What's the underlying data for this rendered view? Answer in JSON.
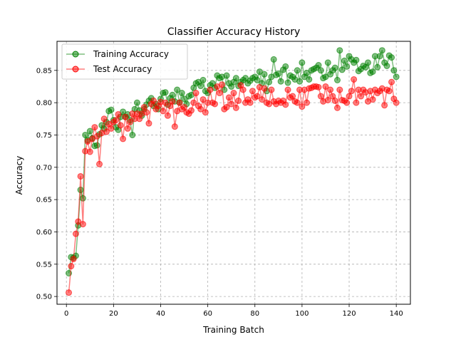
{
  "chart_data": {
    "type": "line",
    "title": "Classifier Accuracy History",
    "xlabel": "Training Batch",
    "ylabel": "Accuracy",
    "xlim": [
      -4,
      146
    ],
    "ylim": [
      0.488,
      0.895
    ],
    "xticks": [
      0,
      20,
      40,
      60,
      80,
      100,
      120,
      140
    ],
    "xtick_labels": [
      "0",
      "20",
      "40",
      "60",
      "80",
      "100",
      "120",
      "140"
    ],
    "yticks": [
      0.5,
      0.55,
      0.6,
      0.65,
      0.7,
      0.75,
      0.8,
      0.85
    ],
    "ytick_labels": [
      "0.50",
      "0.55",
      "0.60",
      "0.65",
      "0.70",
      "0.75",
      "0.80",
      "0.85"
    ],
    "grid": true,
    "legend_position": "top-left",
    "series": [
      {
        "name": "Training Accuracy",
        "color": "#008000",
        "x": [
          1,
          2,
          3,
          4,
          5,
          6,
          7,
          8,
          9,
          10,
          11,
          12,
          13,
          14,
          15,
          16,
          17,
          18,
          19,
          20,
          21,
          22,
          23,
          24,
          25,
          26,
          27,
          28,
          29,
          30,
          31,
          32,
          33,
          34,
          35,
          36,
          37,
          38,
          39,
          40,
          41,
          42,
          43,
          44,
          45,
          46,
          47,
          48,
          49,
          50,
          51,
          52,
          53,
          54,
          55,
          56,
          57,
          58,
          59,
          60,
          61,
          62,
          63,
          64,
          65,
          66,
          67,
          68,
          69,
          70,
          71,
          72,
          73,
          74,
          75,
          76,
          77,
          78,
          79,
          80,
          81,
          82,
          83,
          84,
          85,
          86,
          87,
          88,
          89,
          90,
          91,
          92,
          93,
          94,
          95,
          96,
          97,
          98,
          99,
          100,
          101,
          102,
          103,
          104,
          105,
          106,
          107,
          108,
          109,
          110,
          111,
          112,
          113,
          114,
          115,
          116,
          117,
          118,
          119,
          120,
          121,
          122,
          123,
          124,
          125,
          126,
          127,
          128,
          129,
          130,
          131,
          132,
          133,
          134,
          135,
          136,
          137,
          138,
          139,
          140
        ],
        "values": [
          0.536,
          0.561,
          0.56,
          0.563,
          0.61,
          0.665,
          0.652,
          0.75,
          0.742,
          0.756,
          0.745,
          0.733,
          0.734,
          0.751,
          0.765,
          0.76,
          0.77,
          0.787,
          0.789,
          0.773,
          0.762,
          0.758,
          0.778,
          0.786,
          0.778,
          0.782,
          0.773,
          0.75,
          0.79,
          0.8,
          0.788,
          0.78,
          0.79,
          0.797,
          0.803,
          0.807,
          0.795,
          0.798,
          0.79,
          0.806,
          0.815,
          0.816,
          0.797,
          0.807,
          0.812,
          0.802,
          0.82,
          0.8,
          0.815,
          0.806,
          0.798,
          0.81,
          0.812,
          0.823,
          0.83,
          0.832,
          0.826,
          0.835,
          0.818,
          0.815,
          0.827,
          0.83,
          0.823,
          0.842,
          0.838,
          0.84,
          0.82,
          0.842,
          0.83,
          0.825,
          0.832,
          0.838,
          0.826,
          0.832,
          0.835,
          0.838,
          0.83,
          0.834,
          0.838,
          0.84,
          0.835,
          0.848,
          0.83,
          0.844,
          0.818,
          0.832,
          0.84,
          0.867,
          0.843,
          0.845,
          0.833,
          0.851,
          0.856,
          0.831,
          0.842,
          0.84,
          0.836,
          0.85,
          0.833,
          0.862,
          0.84,
          0.846,
          0.836,
          0.85,
          0.852,
          0.854,
          0.858,
          0.85,
          0.838,
          0.84,
          0.862,
          0.844,
          0.85,
          0.854,
          0.835,
          0.881,
          0.851,
          0.865,
          0.856,
          0.872,
          0.867,
          0.862,
          0.866,
          0.849,
          0.852,
          0.857,
          0.855,
          0.862,
          0.846,
          0.848,
          0.872,
          0.855,
          0.872,
          0.881,
          0.862,
          0.857,
          0.873,
          0.87,
          0.85,
          0.84
        ]
      },
      {
        "name": "Test Accuracy",
        "color": "#ff0000",
        "x": [
          1,
          2,
          3,
          4,
          5,
          6,
          7,
          8,
          9,
          10,
          11,
          12,
          13,
          14,
          15,
          16,
          17,
          18,
          19,
          20,
          21,
          22,
          23,
          24,
          25,
          26,
          27,
          28,
          29,
          30,
          31,
          32,
          33,
          34,
          35,
          36,
          37,
          38,
          39,
          40,
          41,
          42,
          43,
          44,
          45,
          46,
          47,
          48,
          49,
          50,
          51,
          52,
          53,
          54,
          55,
          56,
          57,
          58,
          59,
          60,
          61,
          62,
          63,
          64,
          65,
          66,
          67,
          68,
          69,
          70,
          71,
          72,
          73,
          74,
          75,
          76,
          77,
          78,
          79,
          80,
          81,
          82,
          83,
          84,
          85,
          86,
          87,
          88,
          89,
          90,
          91,
          92,
          93,
          94,
          95,
          96,
          97,
          98,
          99,
          100,
          101,
          102,
          103,
          104,
          105,
          106,
          107,
          108,
          109,
          110,
          111,
          112,
          113,
          114,
          115,
          116,
          117,
          118,
          119,
          120,
          121,
          122,
          123,
          124,
          125,
          126,
          127,
          128,
          129,
          130,
          131,
          132,
          133,
          134,
          135,
          136,
          137,
          138,
          139,
          140
        ],
        "values": [
          0.506,
          0.547,
          0.558,
          0.597,
          0.616,
          0.686,
          0.612,
          0.725,
          0.74,
          0.724,
          0.744,
          0.762,
          0.748,
          0.705,
          0.753,
          0.775,
          0.755,
          0.767,
          0.76,
          0.77,
          0.773,
          0.782,
          0.765,
          0.744,
          0.778,
          0.76,
          0.77,
          0.783,
          0.775,
          0.783,
          0.775,
          0.783,
          0.793,
          0.785,
          0.768,
          0.798,
          0.803,
          0.79,
          0.795,
          0.801,
          0.787,
          0.8,
          0.78,
          0.795,
          0.802,
          0.763,
          0.787,
          0.8,
          0.79,
          0.793,
          0.785,
          0.783,
          0.788,
          0.8,
          0.815,
          0.795,
          0.79,
          0.805,
          0.785,
          0.8,
          0.82,
          0.8,
          0.798,
          0.825,
          0.815,
          0.828,
          0.79,
          0.793,
          0.808,
          0.798,
          0.815,
          0.792,
          0.803,
          0.827,
          0.82,
          0.8,
          0.805,
          0.8,
          0.818,
          0.808,
          0.81,
          0.824,
          0.805,
          0.822,
          0.8,
          0.798,
          0.82,
          0.802,
          0.798,
          0.803,
          0.8,
          0.803,
          0.797,
          0.82,
          0.808,
          0.81,
          0.802,
          0.8,
          0.82,
          0.794,
          0.82,
          0.8,
          0.822,
          0.823,
          0.825,
          0.825,
          0.824,
          0.81,
          0.802,
          0.825,
          0.804,
          0.82,
          0.81,
          0.803,
          0.792,
          0.82,
          0.804,
          0.803,
          0.8,
          0.81,
          0.818,
          0.836,
          0.8,
          0.82,
          0.81,
          0.82,
          0.816,
          0.802,
          0.818,
          0.805,
          0.82,
          0.815,
          0.818,
          0.822,
          0.796,
          0.82,
          0.818,
          0.832,
          0.806,
          0.8
        ]
      }
    ]
  }
}
